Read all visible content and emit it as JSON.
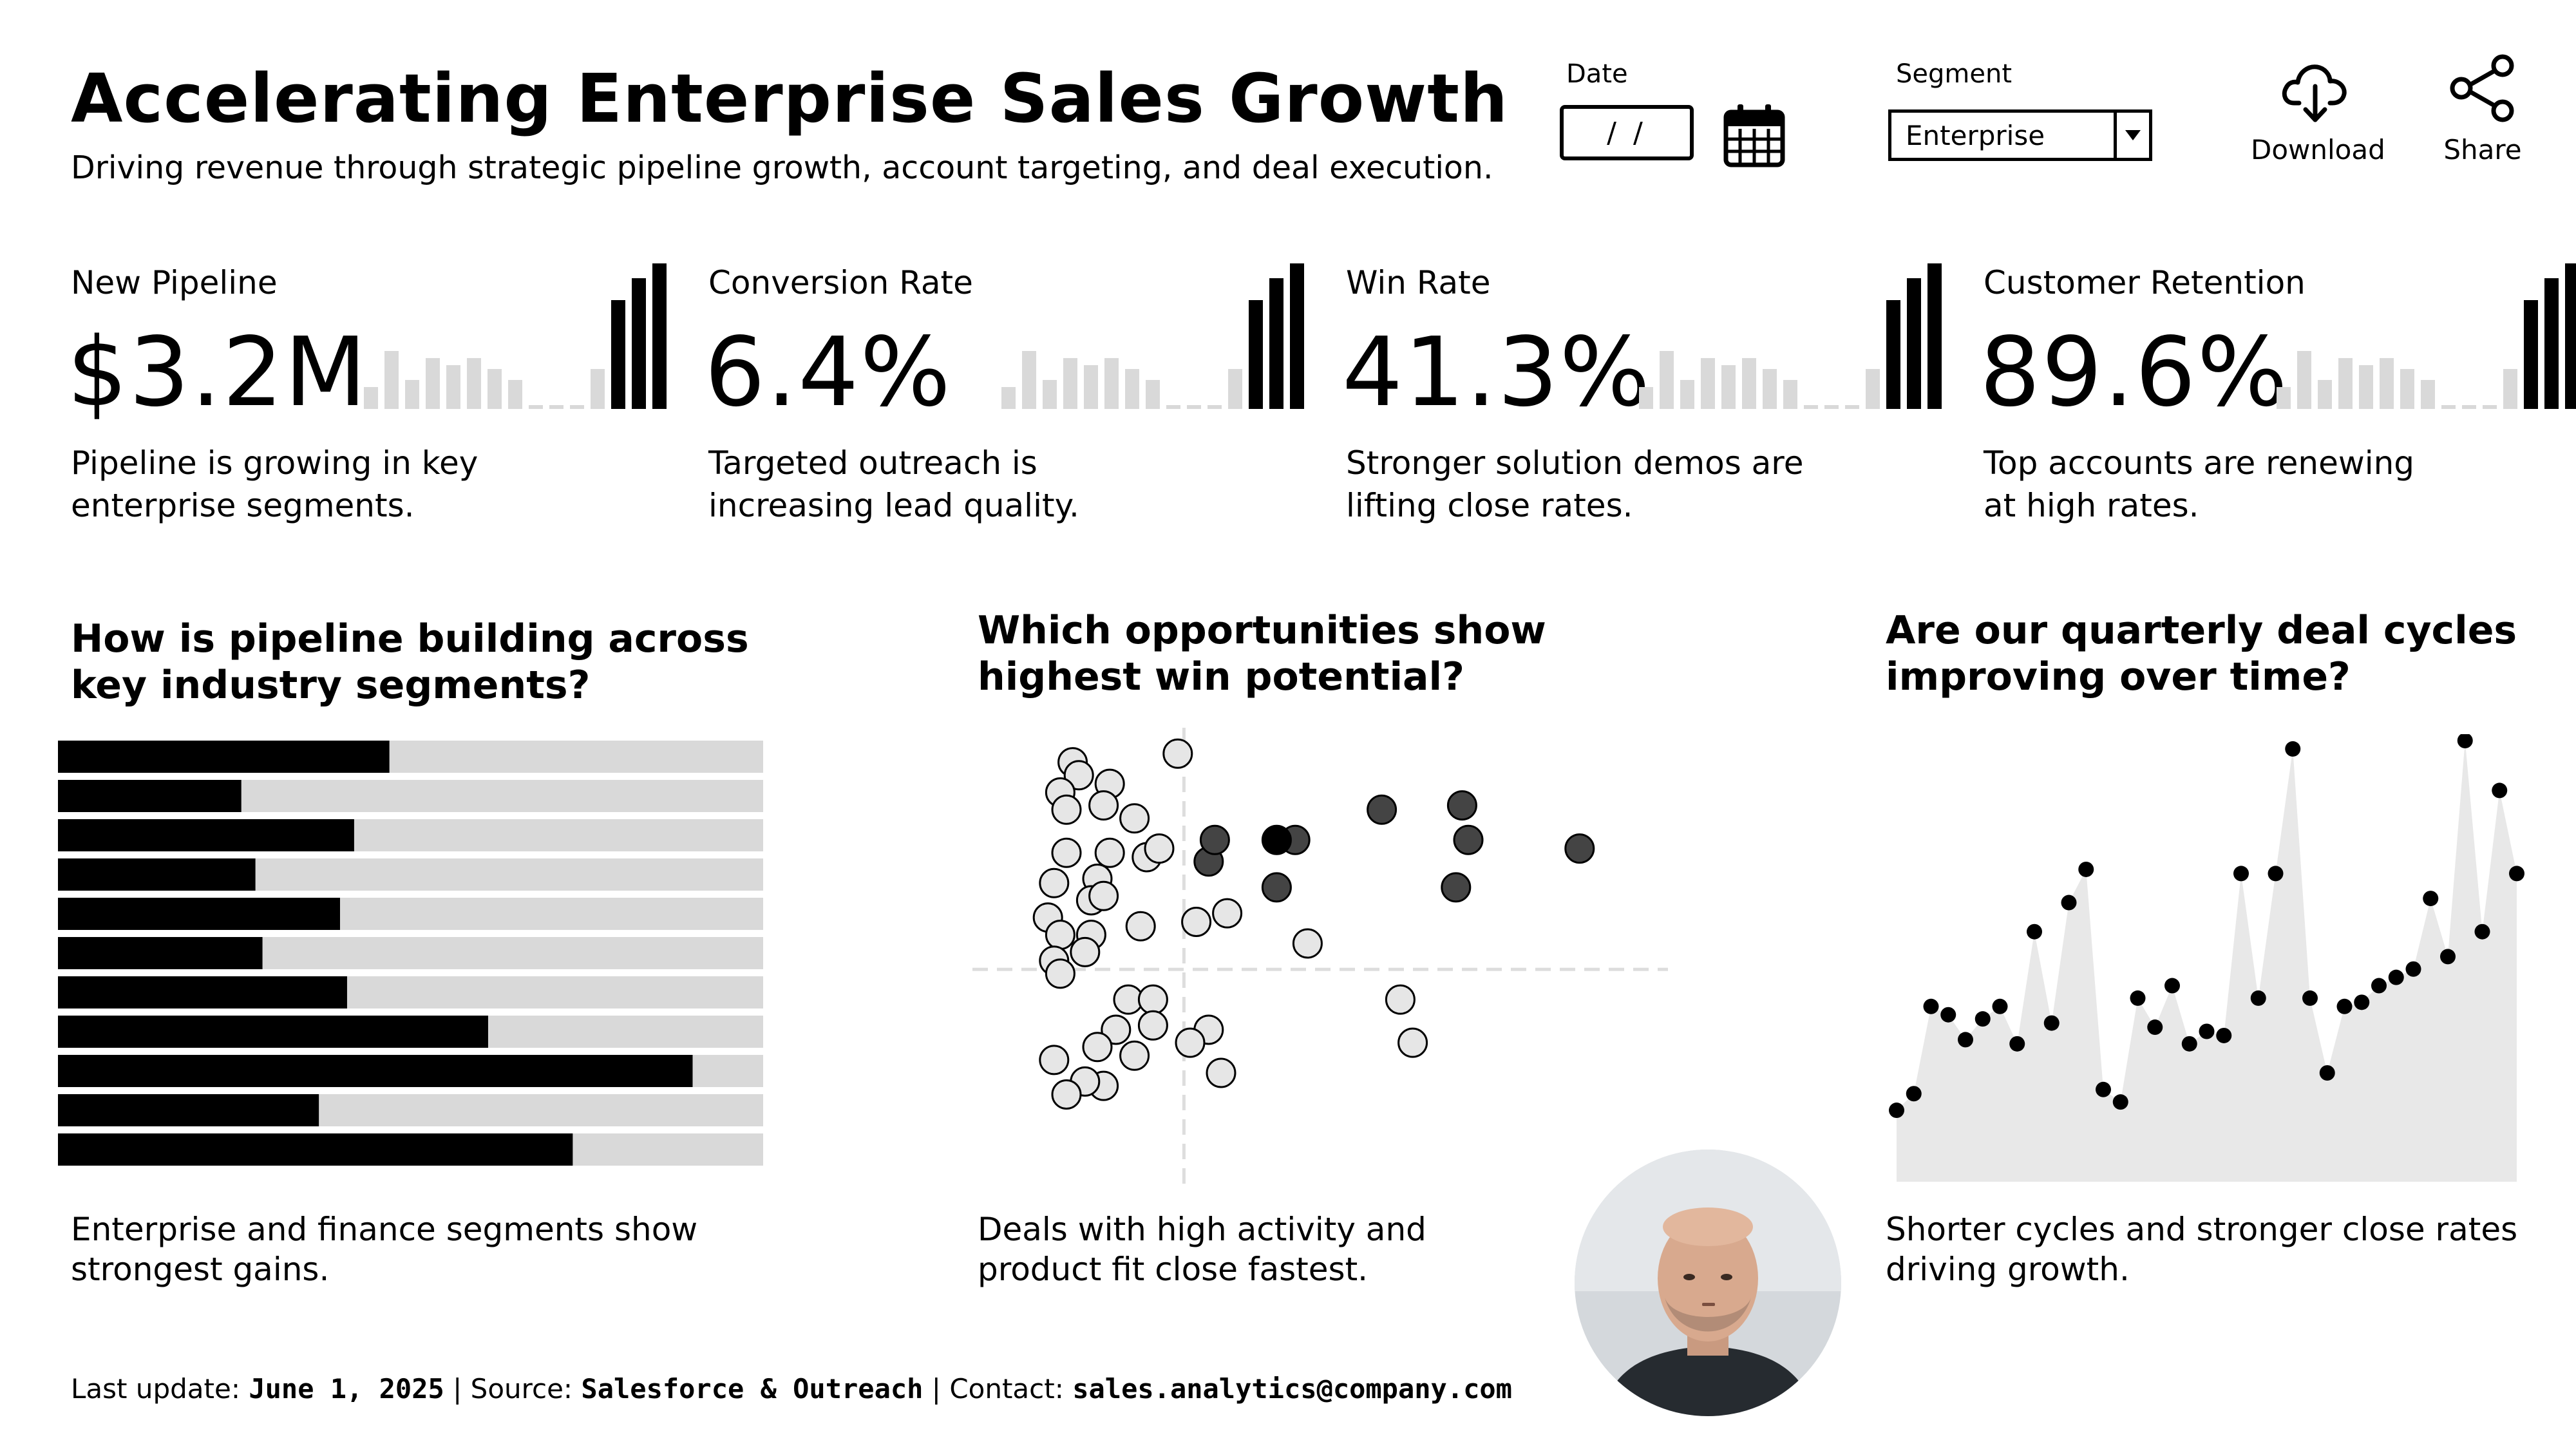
{
  "header": {
    "title": "Accelerating Enterprise Sales Growth",
    "subtitle": "Driving revenue through strategic pipeline growth, account targeting, and deal execution."
  },
  "controls": {
    "date_label": "Date",
    "date_value": "/ /",
    "segment_label": "Segment",
    "segment_value": "Enterprise",
    "download_label": "Download",
    "share_label": "Share"
  },
  "kpis": [
    {
      "label": "New Pipeline",
      "value": "$3.2M",
      "desc": "Pipeline is growing in key enterprise segments.",
      "spark": [
        6,
        16,
        8,
        14,
        12,
        14,
        11,
        8,
        1,
        1,
        1,
        11,
        30,
        36,
        40
      ]
    },
    {
      "label": "Conversion Rate",
      "value": "6.4%",
      "desc": "Targeted outreach is increasing lead quality.",
      "spark": [
        6,
        16,
        8,
        14,
        12,
        14,
        11,
        8,
        1,
        1,
        1,
        11,
        30,
        36,
        40
      ]
    },
    {
      "label": "Win Rate",
      "value": "41.3%",
      "desc": "Stronger solution demos are lifting close rates.",
      "spark": [
        6,
        16,
        8,
        14,
        12,
        14,
        11,
        8,
        1,
        1,
        1,
        11,
        30,
        36,
        40
      ]
    },
    {
      "label": "Customer Retention",
      "value": "89.6%",
      "desc": "Top accounts are renewing at high rates.",
      "spark": [
        6,
        16,
        8,
        14,
        12,
        14,
        11,
        8,
        1,
        1,
        1,
        11,
        30,
        36,
        40
      ]
    }
  ],
  "panels": {
    "segments": {
      "question": "How is pipeline building across key industry segments?",
      "caption": "Enterprise and finance segments show strongest gains."
    },
    "opportunities": {
      "question": "Which opportunities show highest win potential?",
      "caption": "Deals with high activity and product fit close fastest."
    },
    "cycles": {
      "question": "Are our quarterly deal cycles improving over time?",
      "caption": "Shorter cycles and stronger close rates driving growth."
    }
  },
  "footer": {
    "update_label": "Last update:",
    "update_value": "June 1, 2025",
    "source_label": "Source:",
    "source_value": "Salesforce & Outreach",
    "contact_label": "Contact:",
    "contact_value": "sales.analytics@company.com"
  },
  "colors": {
    "ink": "#000000",
    "track": "#d9d9d9",
    "light_point": "#e6e6e6",
    "mid_point": "#444444"
  },
  "chart_data": [
    {
      "type": "bar",
      "orientation": "horizontal",
      "title": "How is pipeline building across key industry segments?",
      "categories": [
        "1",
        "2",
        "3",
        "4",
        "5",
        "6",
        "7",
        "8",
        "9",
        "10",
        "11"
      ],
      "values": [
        47,
        26,
        42,
        28,
        40,
        29,
        41,
        61,
        90,
        37,
        73
      ],
      "ylim": [
        0,
        100
      ]
    },
    {
      "type": "scatter",
      "title": "Which opportunities show highest win potential?",
      "xlim": [
        0,
        100
      ],
      "ylim": [
        0,
        100
      ],
      "reference_lines": {
        "x": 29,
        "y": 44
      },
      "series": [
        {
          "name": "low",
          "points": [
            [
              11,
              92
            ],
            [
              12,
              89
            ],
            [
              17,
              87
            ],
            [
              28,
              94
            ],
            [
              9,
              85
            ],
            [
              10,
              81
            ],
            [
              16,
              82
            ],
            [
              21,
              79
            ],
            [
              10,
              71
            ],
            [
              17,
              71
            ],
            [
              23,
              70
            ],
            [
              25,
              72
            ],
            [
              8,
              64
            ],
            [
              15,
              65
            ],
            [
              14,
              60
            ],
            [
              16,
              61
            ],
            [
              7,
              56
            ],
            [
              22,
              54
            ],
            [
              9,
              52
            ],
            [
              14,
              52
            ],
            [
              13,
              48
            ],
            [
              8,
              46
            ],
            [
              20,
              37
            ],
            [
              24,
              37
            ],
            [
              9,
              43
            ],
            [
              31,
              55
            ],
            [
              36,
              57
            ],
            [
              49,
              50
            ],
            [
              64,
              37
            ],
            [
              66,
              27
            ],
            [
              18,
              30
            ],
            [
              24,
              31
            ],
            [
              33,
              30
            ],
            [
              15,
              26
            ],
            [
              21,
              24
            ],
            [
              30,
              27
            ],
            [
              8,
              23
            ],
            [
              16,
              17
            ],
            [
              13,
              18
            ],
            [
              35,
              20
            ],
            [
              10,
              15
            ]
          ]
        },
        {
          "name": "mid",
          "points": [
            [
              33,
              69
            ],
            [
              44,
              63
            ],
            [
              47,
              74
            ],
            [
              61,
              81
            ],
            [
              34,
              74
            ],
            [
              74,
              82
            ],
            [
              75,
              74
            ],
            [
              93,
              72
            ],
            [
              73,
              63
            ]
          ]
        },
        {
          "name": "high",
          "points": [
            [
              44,
              74
            ]
          ]
        }
      ]
    },
    {
      "type": "area",
      "title": "Are our quarterly deal cycles improving over time?",
      "ylim": [
        0,
        100
      ],
      "x": [
        1,
        2,
        3,
        4,
        5,
        6,
        7,
        8,
        9,
        10,
        11,
        12,
        13,
        14,
        15,
        16,
        17,
        18,
        19,
        20,
        21,
        22,
        23,
        24,
        25,
        26,
        27,
        28,
        29,
        30,
        31,
        32,
        33,
        34,
        35,
        36,
        37
      ],
      "values": [
        11,
        15,
        36,
        34,
        28,
        33,
        36,
        27,
        54,
        32,
        61,
        69,
        16,
        13,
        38,
        31,
        41,
        27,
        30,
        29,
        68,
        38,
        68,
        98,
        38,
        20,
        36,
        37,
        41,
        43,
        45,
        62,
        48,
        100,
        54,
        88,
        68
      ]
    }
  ]
}
